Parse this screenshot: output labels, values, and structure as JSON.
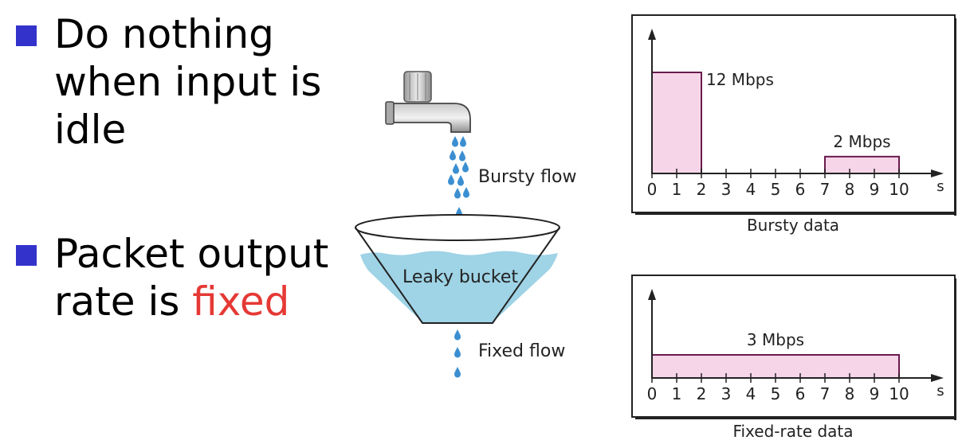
{
  "bullets": [
    {
      "lines": [
        "Do nothing",
        "when input is",
        "idle"
      ]
    },
    {
      "lines": [
        "Packet output"
      ],
      "line2_prefix": "rate is ",
      "line2_accent": "fixed"
    }
  ],
  "figure": {
    "bursty_flow_label": "Bursty flow",
    "bucket_label": "Leaky bucket",
    "fixed_flow_label": "Fixed flow"
  },
  "colors": {
    "bullet_square": "#3333cc",
    "accent_text": "#e53935",
    "bar_fill": "#f6d5e9",
    "bar_stroke": "#6a1b4d",
    "water": "#9fd3e6",
    "drop": "#3b8fd1"
  },
  "chart_data": [
    {
      "type": "bar",
      "caption": "Bursty data",
      "x_unit": "s",
      "x_ticks": [
        "0",
        "1",
        "2",
        "3",
        "4",
        "5",
        "6",
        "7",
        "8",
        "9",
        "10"
      ],
      "xlim": [
        0,
        10
      ],
      "bars": [
        {
          "x_start": 0,
          "x_end": 2,
          "rate_mbps": 12,
          "label": "12 Mbps"
        },
        {
          "x_start": 7,
          "x_end": 10,
          "rate_mbps": 2,
          "label": "2 Mbps"
        }
      ]
    },
    {
      "type": "bar",
      "caption": "Fixed-rate data",
      "x_unit": "s",
      "x_ticks": [
        "0",
        "1",
        "2",
        "3",
        "4",
        "5",
        "6",
        "7",
        "8",
        "9",
        "10"
      ],
      "xlim": [
        0,
        10
      ],
      "bars": [
        {
          "x_start": 0,
          "x_end": 10,
          "rate_mbps": 3,
          "label": "3 Mbps"
        }
      ]
    }
  ]
}
